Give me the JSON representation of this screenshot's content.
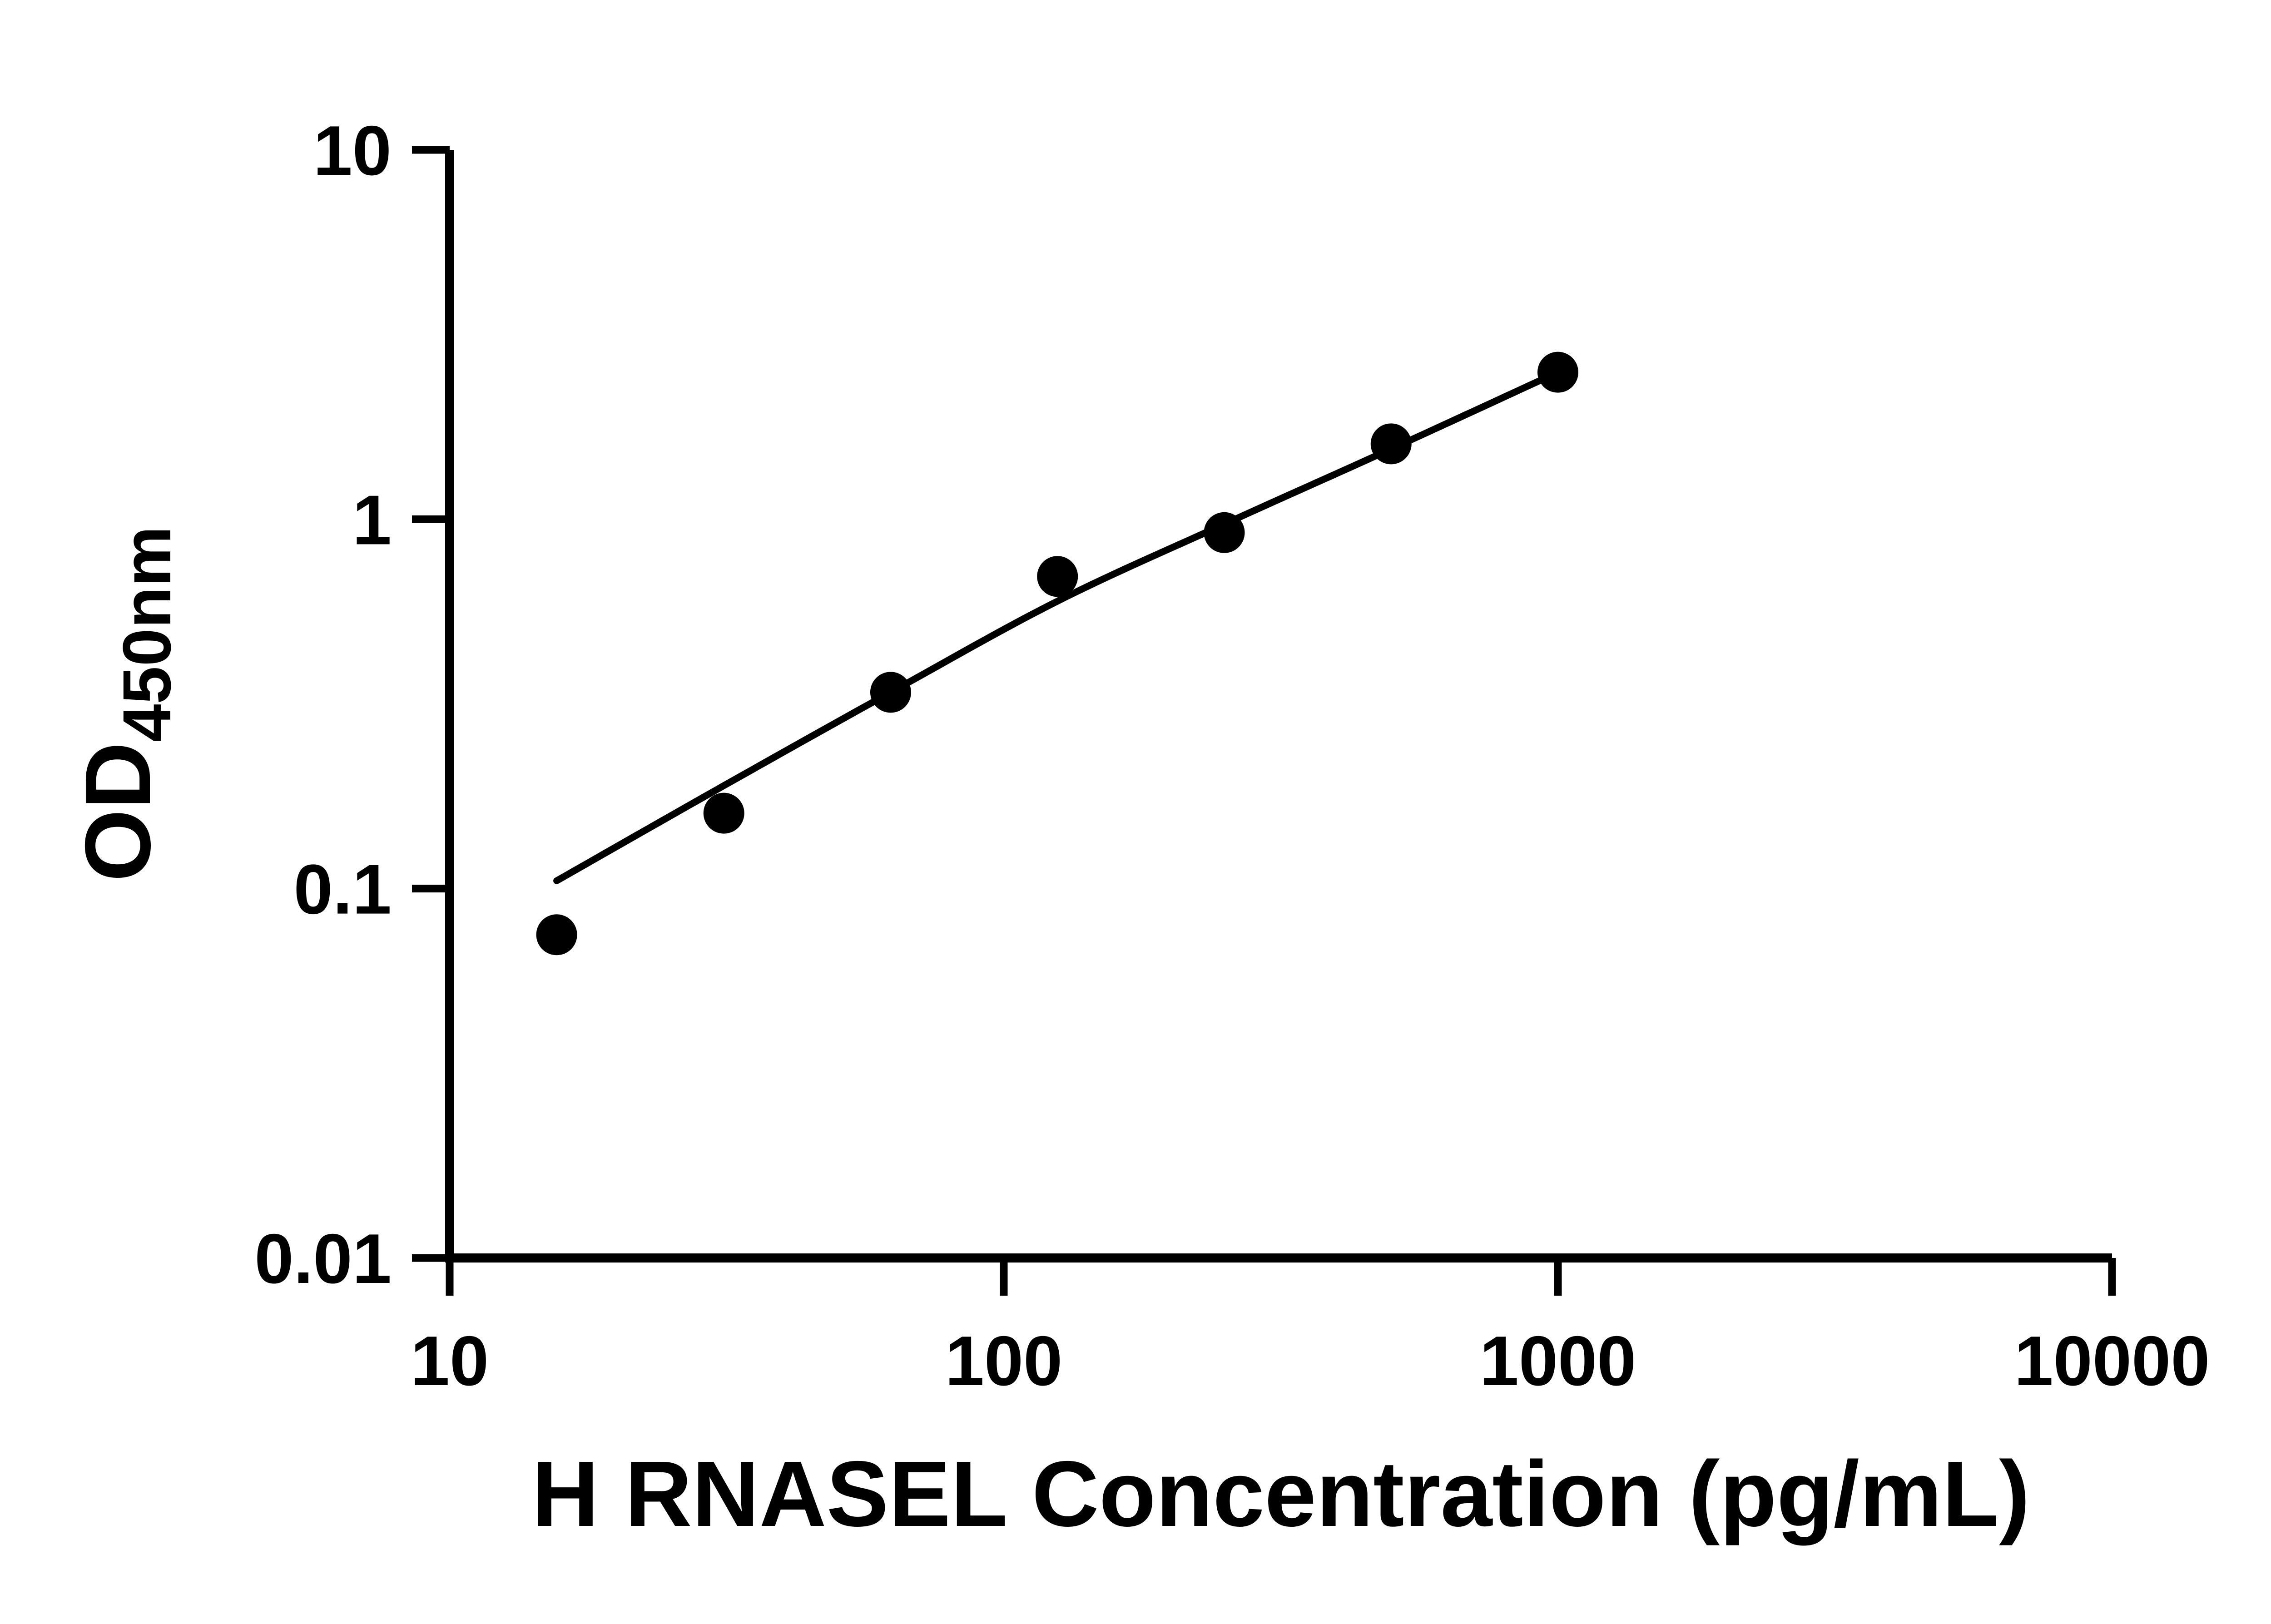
{
  "figure": {
    "background_color": "#ffffff",
    "foreground_color": "#000000"
  },
  "chart_data": {
    "type": "scatter",
    "title": "",
    "xlabel": "H RNASEL Concentration (pg/mL)",
    "ylabel": "OD450nm",
    "ylabel_main": "OD",
    "ylabel_sub": "450nm",
    "x_scale": "log10",
    "y_scale": "log10",
    "xlim": [
      10,
      10000
    ],
    "ylim": [
      0.01,
      10
    ],
    "x_ticks": [
      "10",
      "100",
      "1000",
      "10000"
    ],
    "y_ticks": [
      "0.01",
      "0.1",
      "1",
      "10"
    ],
    "grid": false,
    "legend": false,
    "x": [
      15.6,
      31.25,
      62.5,
      125,
      250,
      500,
      1000
    ],
    "y": [
      0.075,
      0.16,
      0.34,
      0.7,
      0.92,
      1.6,
      2.5
    ],
    "fit_curve": {
      "type": "smooth-fit-through-standards",
      "anchors": [
        [
          15.6,
          0.105
        ],
        [
          31.25,
          0.19
        ],
        [
          62.5,
          0.34
        ],
        [
          125,
          0.6
        ],
        [
          250,
          0.97
        ],
        [
          500,
          1.55
        ],
        [
          1000,
          2.5
        ]
      ]
    },
    "marker": {
      "shape": "circle",
      "color": "#000000",
      "radius_px": 45
    },
    "line_color": "#000000"
  }
}
